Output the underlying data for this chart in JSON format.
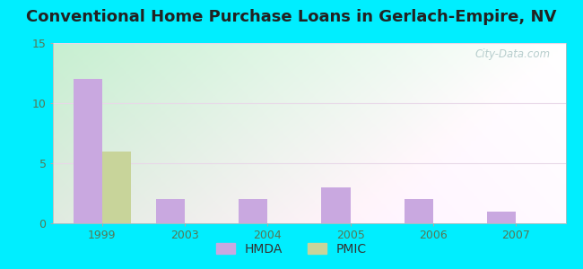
{
  "title": "Conventional Home Purchase Loans in Gerlach-Empire, NV",
  "years": [
    "1999",
    "2003",
    "2004",
    "2005",
    "2006",
    "2007"
  ],
  "hmda_values": [
    12,
    2,
    2,
    3,
    2,
    1
  ],
  "pmic_values": [
    6,
    0,
    0,
    0,
    0,
    0
  ],
  "hmda_color": "#c9a8e0",
  "pmic_color": "#c8d49a",
  "ylim": [
    0,
    15
  ],
  "yticks": [
    0,
    5,
    10,
    15
  ],
  "bg_outer": "#00eeff",
  "bar_width": 0.35,
  "watermark": "City-Data.com",
  "title_fontsize": 13,
  "tick_fontsize": 9,
  "legend_fontsize": 10,
  "grid_color": "#e8d8e8",
  "tick_color": "#557755"
}
